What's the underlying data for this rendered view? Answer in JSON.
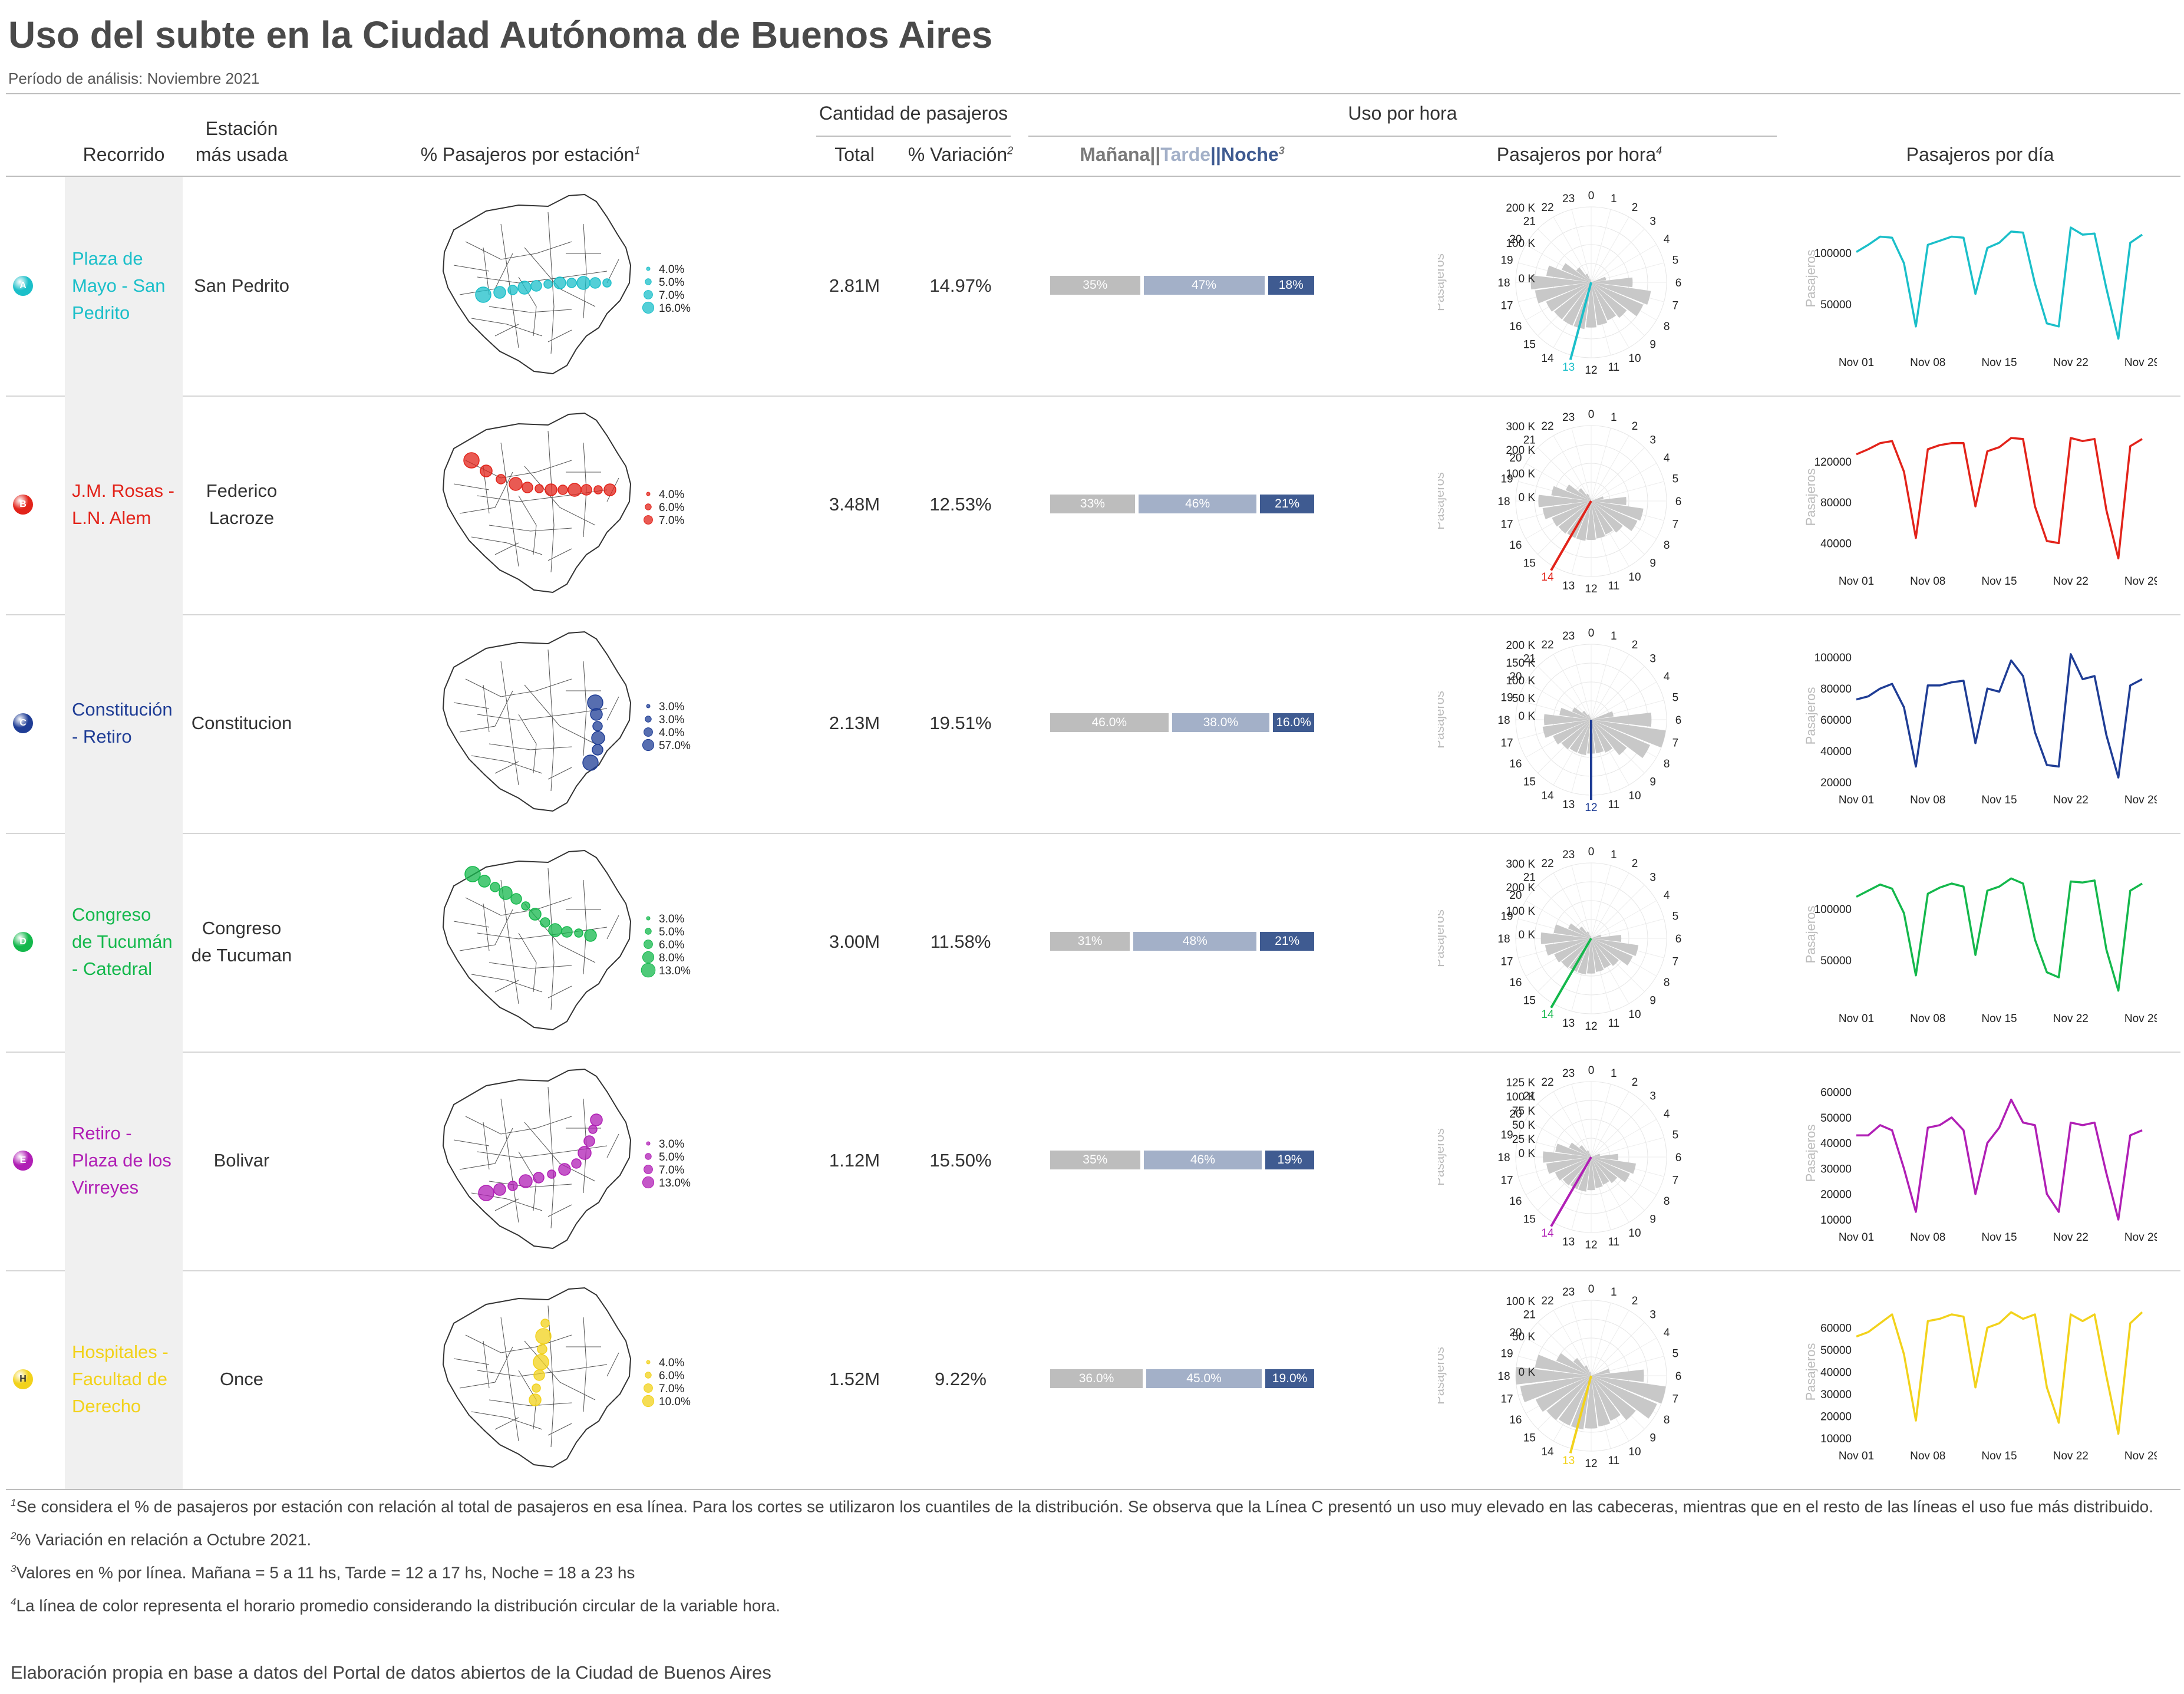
{
  "title": "Uso del subte en la Ciudad Autónoma de Buenos Aires",
  "subtitle": "Período de análisis: Noviembre 2021",
  "headers": {
    "recorrido": "Recorrido",
    "estacion_line1": "Estación",
    "estacion_line2": "más usada",
    "pct_estacion": "% Pasajeros por estación",
    "cantidad": "Cantidad de pasajeros",
    "total": "Total",
    "variacion": "% Variación",
    "uso_hora": "Uso por hora",
    "manana": "Mañana",
    "sep1": "||",
    "tarde": "Tarde",
    "sep2": "||",
    "noche": "Noche",
    "pasajeros_hora": "Pasajeros por hora",
    "pasajeros_dia": "Pasajeros por día",
    "sup1": "1",
    "sup2": "2",
    "sup3": "3",
    "sup4": "4"
  },
  "colors": {
    "manana": "#bdbdbd",
    "tarde": "#a3b0c8",
    "noche": "#3f5b91",
    "tarde_text": "#a3b0c8",
    "noche_text": "#3f5b91",
    "manana_text": "#7a7a7a"
  },
  "polar_axis_label": "Pasajeros",
  "hour_labels": [
    "0",
    "1",
    "2",
    "3",
    "4",
    "5",
    "6",
    "7",
    "8",
    "9",
    "10",
    "11",
    "12",
    "13",
    "14",
    "15",
    "16",
    "17",
    "18",
    "19",
    "20",
    "21",
    "22",
    "23"
  ],
  "date_ticks": [
    "Nov 01",
    "Nov 08",
    "Nov 15",
    "Nov 22",
    "Nov 29"
  ],
  "rows": [
    {
      "letter": "A",
      "color": "#1bbfc9",
      "name_lines": [
        "Plaza de",
        "Mayo - San",
        "Pedrito"
      ],
      "station_lines": [
        "San Pedrito"
      ],
      "total": "2.81M",
      "variacion": "14.97%",
      "split": {
        "manana": 35,
        "tarde": 47,
        "noche": 18
      },
      "split_labels": [
        "35%",
        "47%",
        "18%"
      ],
      "map_legend": [
        "4.0%",
        "5.0%",
        "7.0%",
        "16.0%"
      ],
      "polar_ticks": [
        "200 K",
        "100 K",
        "0 K"
      ],
      "polar_max": 200000,
      "mean_hour": 13,
      "mean_label": "13",
      "hourly": [
        0,
        0,
        0,
        0,
        0,
        40000,
        110000,
        160000,
        150000,
        120000,
        110000,
        115000,
        120000,
        125000,
        125000,
        125000,
        130000,
        150000,
        160000,
        120000,
        85000,
        50000,
        25000,
        8000
      ],
      "daily_ticks": [
        "100000",
        "50000"
      ],
      "daily_tick_values": [
        100000,
        50000
      ],
      "daily_range": [
        10000,
        140000
      ],
      "daily": [
        101000,
        108000,
        116000,
        115000,
        90000,
        28000,
        108000,
        112000,
        116000,
        115000,
        60000,
        105000,
        110000,
        121000,
        120000,
        70000,
        31000,
        28000,
        125000,
        118000,
        119000,
        65000,
        16000,
        110000,
        118000
      ]
    },
    {
      "letter": "B",
      "color": "#e2231a",
      "name_lines": [
        "J.M. Rosas -",
        "L.N. Alem"
      ],
      "station_lines": [
        "Federico",
        "Lacroze"
      ],
      "total": "3.48M",
      "variacion": "12.53%",
      "split": {
        "manana": 33,
        "tarde": 46,
        "noche": 21
      },
      "split_labels": [
        "33%",
        "46%",
        "21%"
      ],
      "map_legend": [
        "4.0%",
        "6.0%",
        "7.0%"
      ],
      "polar_ticks": [
        "300 K",
        "200 K",
        "100 K",
        "0 K"
      ],
      "polar_max": 300000,
      "mean_hour": 14,
      "mean_label": "14",
      "hourly": [
        0,
        0,
        0,
        0,
        0,
        50000,
        140000,
        210000,
        200000,
        160000,
        145000,
        150000,
        155000,
        160000,
        160000,
        165000,
        170000,
        195000,
        210000,
        160000,
        110000,
        65000,
        32000,
        10000
      ],
      "daily_ticks": [
        "120000",
        "80000",
        "40000"
      ],
      "daily_tick_values": [
        120000,
        80000,
        40000
      ],
      "daily_range": [
        20000,
        150000
      ],
      "daily": [
        127000,
        132000,
        138000,
        140000,
        110000,
        45000,
        132000,
        136000,
        138000,
        138000,
        76000,
        130000,
        134000,
        143000,
        142000,
        76000,
        42000,
        40000,
        143000,
        140000,
        142000,
        72000,
        25000,
        135000,
        142000
      ]
    },
    {
      "letter": "C",
      "color": "#1f3d95",
      "name_lines": [
        "Constitución",
        "- Retiro"
      ],
      "station_lines": [
        "Constitucion"
      ],
      "total": "2.13M",
      "variacion": "19.51%",
      "split": {
        "manana": 46,
        "tarde": 38,
        "noche": 16
      },
      "split_labels": [
        "46.0%",
        "38.0%",
        "16.0%"
      ],
      "map_legend": [
        "3.0%",
        "3.0%",
        "4.0%",
        "57.0%"
      ],
      "polar_ticks": [
        "200 K",
        "150 K",
        "100 K",
        "50 K",
        "0 K"
      ],
      "polar_max": 200000,
      "mean_hour": 12,
      "mean_label": "12",
      "hourly": [
        0,
        0,
        0,
        0,
        0,
        60000,
        160000,
        200000,
        170000,
        120000,
        95000,
        90000,
        90000,
        95000,
        95000,
        100000,
        110000,
        130000,
        125000,
        85000,
        55000,
        30000,
        15000,
        5000
      ],
      "daily_ticks": [
        "100000",
        "80000",
        "60000",
        "40000",
        "20000"
      ],
      "daily_tick_values": [
        100000,
        80000,
        60000,
        40000,
        20000
      ],
      "daily_range": [
        20000,
        105000
      ],
      "daily": [
        73000,
        75000,
        80000,
        83000,
        68000,
        30000,
        82000,
        82000,
        84000,
        85000,
        45000,
        80000,
        78000,
        98000,
        88000,
        52000,
        31000,
        30000,
        102000,
        86000,
        88000,
        50000,
        23000,
        82000,
        86000
      ]
    },
    {
      "letter": "D",
      "color": "#14b84c",
      "name_lines": [
        "Congreso",
        "de Tucumán",
        "- Catedral"
      ],
      "station_lines": [
        "Congreso",
        "de Tucuman"
      ],
      "total": "3.00M",
      "variacion": "11.58%",
      "split": {
        "manana": 31,
        "tarde": 48,
        "noche": 21
      },
      "split_labels": [
        "31%",
        "48%",
        "21%"
      ],
      "map_legend": [
        "3.0%",
        "5.0%",
        "6.0%",
        "8.0%",
        "13.0%"
      ],
      "polar_ticks": [
        "300 K",
        "200 K",
        "100 K",
        "0 K"
      ],
      "polar_max": 300000,
      "mean_hour": 14,
      "mean_label": "14",
      "hourly": [
        0,
        0,
        0,
        0,
        0,
        40000,
        120000,
        190000,
        180000,
        140000,
        130000,
        135000,
        140000,
        145000,
        145000,
        150000,
        160000,
        185000,
        200000,
        150000,
        100000,
        60000,
        30000,
        10000
      ],
      "daily_ticks": [
        "100000",
        "50000"
      ],
      "daily_tick_values": [
        100000,
        50000
      ],
      "daily_range": [
        10000,
        140000
      ],
      "daily": [
        112000,
        118000,
        124000,
        120000,
        96000,
        35000,
        115000,
        121000,
        125000,
        122000,
        55000,
        118000,
        122000,
        130000,
        125000,
        70000,
        38000,
        33000,
        127000,
        126000,
        128000,
        60000,
        20000,
        118000,
        125000
      ]
    },
    {
      "letter": "E",
      "color": "#b01fb5",
      "name_lines": [
        "Retiro -",
        "Plaza de los",
        "Virreyes"
      ],
      "station_lines": [
        "Bolivar"
      ],
      "total": "1.12M",
      "variacion": "15.50%",
      "split": {
        "manana": 35,
        "tarde": 46,
        "noche": 19
      },
      "split_labels": [
        "35%",
        "46%",
        "19%"
      ],
      "map_legend": [
        "3.0%",
        "5.0%",
        "7.0%",
        "13.0%"
      ],
      "polar_ticks": [
        "125 K",
        "100 K",
        "75 K",
        "50 K",
        "25 K",
        "0 K"
      ],
      "polar_max": 125000,
      "mean_hour": 14,
      "mean_label": "14",
      "hourly": [
        0,
        0,
        0,
        0,
        0,
        15000,
        45000,
        75000,
        70000,
        55000,
        50000,
        52000,
        55000,
        58000,
        58000,
        60000,
        65000,
        75000,
        80000,
        60000,
        40000,
        25000,
        12000,
        4000
      ],
      "daily_ticks": [
        "60000",
        "50000",
        "40000",
        "30000",
        "20000",
        "10000"
      ],
      "daily_tick_values": [
        60000,
        50000,
        40000,
        30000,
        20000,
        10000
      ],
      "daily_range": [
        10000,
        62000
      ],
      "daily": [
        43000,
        43000,
        47000,
        45000,
        30000,
        13000,
        46000,
        47000,
        50000,
        45000,
        20000,
        40000,
        46000,
        57000,
        48000,
        47000,
        20000,
        13000,
        48000,
        47000,
        48000,
        28000,
        10000,
        43000,
        45000
      ]
    },
    {
      "letter": "H",
      "color": "#f2d21b",
      "name_lines": [
        "Hospitales -",
        "Facultad de",
        "Derecho"
      ],
      "station_lines": [
        "Once"
      ],
      "total": "1.52M",
      "variacion": "9.22%",
      "split": {
        "manana": 36,
        "tarde": 45,
        "noche": 19
      },
      "split_labels": [
        "36.0%",
        "45.0%",
        "19.0%"
      ],
      "map_legend": [
        "4.0%",
        "6.0%",
        "7.0%",
        "10.0%"
      ],
      "polar_ticks": [
        "100 K",
        "50 K",
        "0 K"
      ],
      "polar_max": 100000,
      "mean_hour": 13,
      "mean_label": "13",
      "hourly": [
        0,
        0,
        0,
        0,
        0,
        25000,
        70000,
        100000,
        95000,
        75000,
        65000,
        68000,
        70000,
        72000,
        72000,
        75000,
        80000,
        95000,
        100000,
        75000,
        50000,
        30000,
        15000,
        5000
      ],
      "daily_ticks": [
        "60000",
        "50000",
        "40000",
        "30000",
        "20000",
        "10000"
      ],
      "daily_tick_values": [
        60000,
        50000,
        40000,
        30000,
        20000,
        10000
      ],
      "daily_range": [
        10000,
        70000
      ],
      "daily": [
        56000,
        58000,
        62000,
        66000,
        48000,
        18000,
        63000,
        64000,
        66000,
        65000,
        33000,
        60000,
        62000,
        67000,
        64000,
        66000,
        33000,
        17000,
        66000,
        63000,
        66000,
        38000,
        12000,
        62000,
        67000
      ]
    }
  ],
  "footnotes": [
    {
      "sup": "1",
      "text": "Se considera el % de pasajeros por estación con relación al total de pasajeros en esa línea. Para los cortes se utilizaron los cuantiles de la distribución. Se observa que la Línea C presentó un uso muy elevado en las cabeceras, mientras que en el resto de las líneas el uso fue más distribuido."
    },
    {
      "sup": "2",
      "text": "% Variación en relación a Octubre 2021."
    },
    {
      "sup": "3",
      "text": "Valores en % por línea. Mañana = 5 a 11 hs, Tarde = 12 a 17 hs, Noche = 18 a 23 hs"
    },
    {
      "sup": "4",
      "text": "La línea de color representa el horario promedio considerando la distribución circular de la variable hora."
    }
  ],
  "source": "Elaboración propia en base a datos del Portal de datos abiertos de la Ciudad de Buenos Aires",
  "chart_data": [
    {
      "type": "table",
      "title": "",
      "columns": [
        "Recorrido",
        "Estación más usada",
        "Total",
        "% Variación",
        "Mañana",
        "Tarde",
        "Noche"
      ],
      "rows": [
        [
          "Plaza de Mayo - San Pedrito",
          "San Pedrito",
          "2.81M",
          "14.97%",
          "35%",
          "47%",
          "18%"
        ],
        [
          "J.M. Rosas - L.N. Alem",
          "Federico Lacroze",
          "3.48M",
          "12.53%",
          "33%",
          "46%",
          "21%"
        ],
        [
          "Constitución - Retiro",
          "Constitucion",
          "2.13M",
          "19.51%",
          "46.0%",
          "38.0%",
          "16.0%"
        ],
        [
          "Congreso de Tucumán - Catedral",
          "Congreso de Tucuman",
          "3.00M",
          "11.58%",
          "31%",
          "48%",
          "21%"
        ],
        [
          "Retiro - Plaza de los Virreyes",
          "Bolivar",
          "1.12M",
          "15.50%",
          "35%",
          "46%",
          "19%"
        ],
        [
          "Hospitales - Facultad de Derecho",
          "Once",
          "1.52M",
          "9.22%",
          "36.0%",
          "45.0%",
          "19.0%"
        ]
      ]
    }
  ]
}
